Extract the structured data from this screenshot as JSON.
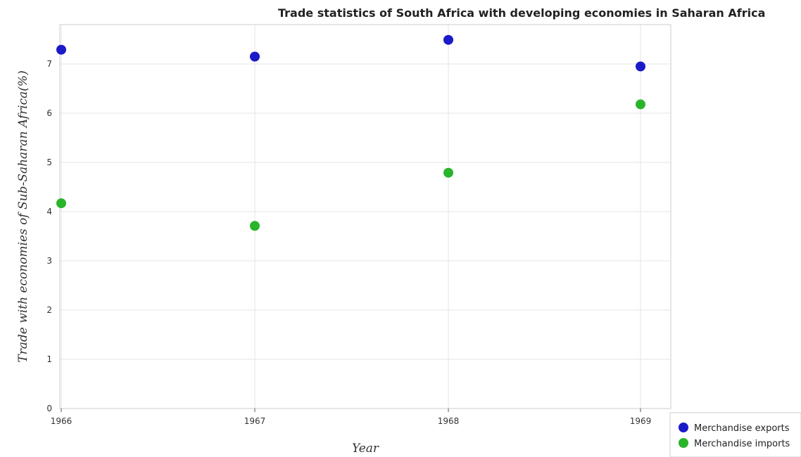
{
  "chart_data": {
    "type": "scatter",
    "title": "Trade statistics of South Africa with developing economies in Saharan Africa",
    "xlabel": "Year",
    "ylabel": "Trade with economies of Sub-Saharan Africa(%)",
    "categories": [
      "1966",
      "1967",
      "1968",
      "1969"
    ],
    "ylim": [
      0,
      7.8
    ],
    "yticks": [
      "0",
      "1",
      "2",
      "3",
      "4",
      "5",
      "6",
      "7"
    ],
    "grid": true,
    "legend_position": "bottom-right",
    "series": [
      {
        "name": "Merchandise exports",
        "color": "#1a1ac8",
        "values": [
          7.29,
          7.15,
          7.49,
          6.95
        ]
      },
      {
        "name": "Merchandise imports",
        "color": "#2ab42a",
        "values": [
          4.17,
          3.71,
          4.79,
          6.18
        ]
      }
    ]
  }
}
